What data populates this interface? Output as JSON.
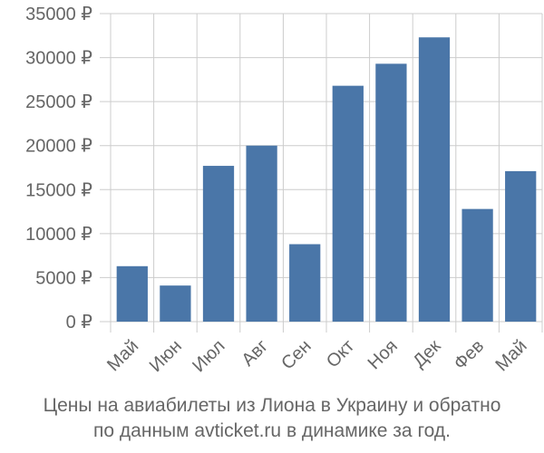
{
  "chart_data": {
    "type": "bar",
    "categories": [
      "Май",
      "Июн",
      "Июл",
      "Авг",
      "Сен",
      "Окт",
      "Ноя",
      "Дек",
      "Фев",
      "Май"
    ],
    "values": [
      6300,
      4100,
      17700,
      20000,
      8800,
      26800,
      29300,
      32300,
      12800,
      17100
    ],
    "y_ticks": [
      "0 ₽",
      "5000 ₽",
      "10000 ₽",
      "15000 ₽",
      "20000 ₽",
      "25000 ₽",
      "30000 ₽",
      "35000 ₽"
    ],
    "ylim": [
      0,
      35000
    ],
    "y_tick_step": 5000,
    "grid": true,
    "bar_color": "#4a76a8",
    "grid_color": "#cccccc",
    "axis_text_color": "#666666"
  },
  "caption": {
    "line1": "Цены на авиабилеты из Лиона в Украину и обратно",
    "line2": "по данным avticket.ru в динамике за год."
  }
}
